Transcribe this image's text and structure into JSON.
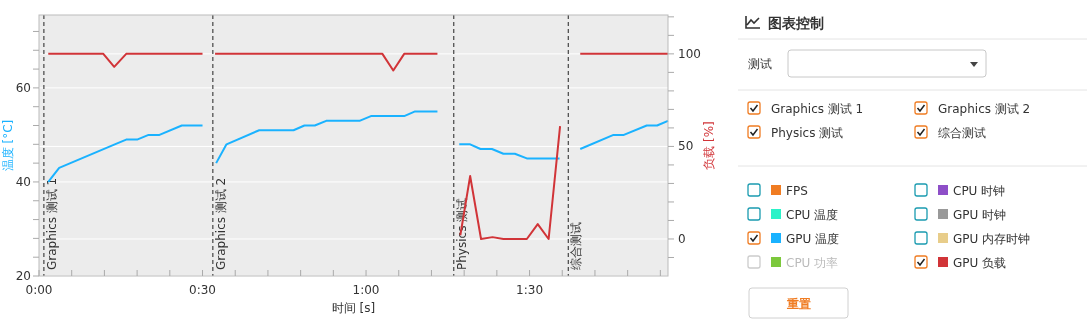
{
  "chart_data": [
    {
      "type": "line",
      "xlabel": "时间 [s]",
      "ylabel": "温度 [°C]",
      "y2label": "负载 [%]",
      "xlim": [
        0,
        115.4
      ],
      "ylim": [
        20,
        75.5
      ],
      "y2lim": [
        -20,
        121
      ],
      "xticks": [
        {
          "value": 0,
          "label": "0:00"
        },
        {
          "value": 6,
          "label": null
        },
        {
          "value": 12,
          "label": null
        },
        {
          "value": 18,
          "label": null
        },
        {
          "value": 24,
          "label": null
        },
        {
          "value": 30,
          "label": "0:30"
        },
        {
          "value": 36,
          "label": null
        },
        {
          "value": 42,
          "label": null
        },
        {
          "value": 48,
          "label": null
        },
        {
          "value": 54,
          "label": null
        },
        {
          "value": 60,
          "label": "1:00"
        },
        {
          "value": 66,
          "label": null
        },
        {
          "value": 72,
          "label": null
        },
        {
          "value": 78,
          "label": null
        },
        {
          "value": 84,
          "label": null
        },
        {
          "value": 90,
          "label": "1:30"
        },
        {
          "value": 96,
          "label": null
        },
        {
          "value": 102,
          "label": null
        },
        {
          "value": 108,
          "label": null
        },
        {
          "value": 114,
          "label": null
        }
      ],
      "yticks": [
        20,
        {
          "value": 24,
          "label": null
        },
        {
          "value": 28,
          "label": null
        },
        {
          "value": 32,
          "label": null
        },
        {
          "value": 36,
          "label": null
        },
        40,
        {
          "value": 44,
          "label": null
        },
        {
          "value": 48,
          "label": null
        },
        {
          "value": 52,
          "label": null
        },
        {
          "value": 56,
          "label": null
        },
        60,
        {
          "value": 64,
          "label": null
        },
        {
          "value": 68,
          "label": null
        },
        {
          "value": 72,
          "label": null
        }
      ],
      "y2ticks": [
        {
          "value": -10,
          "label": null
        },
        0,
        {
          "value": 10,
          "label": null
        },
        {
          "value": 20,
          "label": null
        },
        {
          "value": 30,
          "label": null
        },
        {
          "value": 40,
          "label": null
        },
        50,
        {
          "value": 60,
          "label": null
        },
        {
          "value": 70,
          "label": null
        },
        {
          "value": 80,
          "label": null
        },
        {
          "value": 90,
          "label": null
        },
        100,
        {
          "value": 110,
          "label": null
        },
        {
          "value": 120,
          "label": null
        }
      ],
      "grid": "y",
      "legend": "right",
      "line_style": "solid",
      "marker": "none",
      "ref_lines": [
        {
          "axis": "x",
          "value": 0.9,
          "label": "Graphics 测试 1",
          "line_style": "dashed",
          "color": "#222222"
        },
        {
          "axis": "x",
          "value": 31.9,
          "label": "Graphics 测试 2",
          "line_style": "dashed",
          "color": "#222222"
        },
        {
          "axis": "x",
          "value": 76.1,
          "label": "Physics 测试",
          "line_style": "dashed",
          "color": "#222222"
        },
        {
          "axis": "x",
          "value": 97.1,
          "label": "综合测试",
          "line_style": "dashed",
          "color": "#222222"
        }
      ],
      "series": [
        {
          "name": "GPU 温度",
          "color": "#1ab2ff",
          "x": [
            1.7,
            3.7,
            13.9,
            16.0,
            18.0,
            20.1,
            22.1,
            26.2,
            30.0,
            31.2,
            32.5,
            34.4,
            40.4,
            46.7,
            48.7,
            50.6,
            52.7,
            58.8,
            60.9,
            67.0,
            69.0,
            73.1,
            75.0,
            77.1,
            79.1,
            81.0,
            83.1,
            85.2,
            87.3,
            89.5,
            95.5,
            97.0,
            99.3,
            105.4,
            107.3,
            111.5,
            113.4,
            115.4
          ],
          "values": [
            40,
            43,
            48,
            49,
            49,
            50,
            50,
            52,
            52,
            null,
            44,
            48,
            51,
            51,
            52,
            52,
            53,
            53,
            54,
            54,
            55,
            55,
            null,
            48,
            48,
            47,
            47,
            46,
            46,
            45,
            45,
            null,
            47,
            50,
            50,
            52,
            52,
            53
          ]
        },
        {
          "name": "GPU 负载",
          "color": "#d13438",
          "axis": "y2",
          "x": [
            1.7,
            11.8,
            13.8,
            16.0,
            30.0,
            31.2,
            32.3,
            63.0,
            65.0,
            67.0,
            73.1,
            75.0,
            77.3,
            79.1,
            81.1,
            83.2,
            85.2,
            89.5,
            91.5,
            93.5,
            95.6,
            97.0,
            99.3,
            115.4
          ],
          "values": [
            100,
            100,
            93,
            100,
            100,
            null,
            100,
            100,
            91,
            100,
            100,
            null,
            2,
            34,
            0,
            1,
            0,
            0,
            8,
            0,
            61,
            null,
            100,
            100
          ]
        }
      ]
    },
    {
      "type": "other",
      "title": "图表控制",
      "annotations": [
        "测试",
        "Graphics 测试 1",
        "Graphics 测试 2",
        "Physics 测试",
        "综合测试",
        "FPS",
        "CPU 时钟",
        "CPU 温度",
        "GPU 时钟",
        "GPU 内存时钟",
        "CPU 功率",
        "重置"
      ]
    }
  ]
}
